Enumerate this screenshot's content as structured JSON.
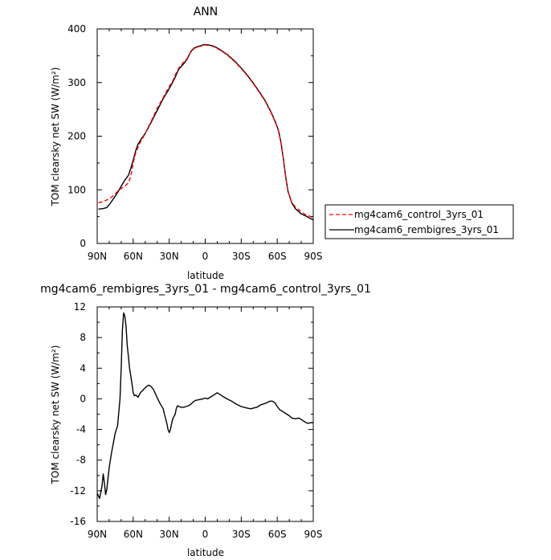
{
  "chart_data": [
    {
      "type": "line",
      "title": "ANN",
      "xlabel": "latitude",
      "ylabel": "TOM clearsky net SW (W/m²)",
      "xlim": [
        90,
        -90
      ],
      "ylim": [
        0,
        400
      ],
      "x_ticks": [
        90,
        60,
        30,
        0,
        -30,
        -60,
        -90
      ],
      "x_tick_labels": [
        "90N",
        "60N",
        "30N",
        "0",
        "30S",
        "60S",
        "90S"
      ],
      "y_ticks": [
        0,
        100,
        200,
        300,
        400
      ],
      "y_tick_labels": [
        "0",
        "100",
        "200",
        "300",
        "400"
      ],
      "legend_position": "right",
      "series": [
        {
          "name": "mg4cam6_control_3yrs_01",
          "color": "#ff0000",
          "dash": "dashed",
          "points": [
            [
              89,
              76
            ],
            [
              85,
              78
            ],
            [
              80,
              83
            ],
            [
              75,
              92
            ],
            [
              72,
              100
            ],
            [
              68,
              105
            ],
            [
              64,
              113
            ],
            [
              62,
              125
            ],
            [
              60,
              150
            ],
            [
              58,
              168
            ],
            [
              55,
              185
            ],
            [
              50,
              205
            ],
            [
              45,
              228
            ],
            [
              40,
              252
            ],
            [
              35,
              272
            ],
            [
              31,
              289
            ],
            [
              27,
              303
            ],
            [
              25,
              314
            ],
            [
              22,
              327
            ],
            [
              18,
              338
            ],
            [
              15,
              345
            ],
            [
              12,
              357
            ],
            [
              9,
              364
            ],
            [
              5,
              367
            ],
            [
              2,
              369
            ],
            [
              0,
              370
            ],
            [
              -3,
              369
            ],
            [
              -7,
              367
            ],
            [
              -12,
              361
            ],
            [
              -18,
              352
            ],
            [
              -25,
              338
            ],
            [
              -30,
              326
            ],
            [
              -35,
              313
            ],
            [
              -40,
              298
            ],
            [
              -45,
              282
            ],
            [
              -50,
              265
            ],
            [
              -55,
              243
            ],
            [
              -58,
              228
            ],
            [
              -61,
              210
            ],
            [
              -63,
              190
            ],
            [
              -65,
              160
            ],
            [
              -67,
              125
            ],
            [
              -69,
              97
            ],
            [
              -72,
              77
            ],
            [
              -75,
              68
            ],
            [
              -80,
              59
            ],
            [
              -84,
              53
            ],
            [
              -88,
              50
            ],
            [
              -90,
              48
            ]
          ]
        },
        {
          "name": "mg4cam6_rembigres_3yrs_01",
          "color": "#000000",
          "dash": "solid",
          "points": [
            [
              89,
              64
            ],
            [
              85,
              65
            ],
            [
              82,
              67
            ],
            [
              79,
              75
            ],
            [
              76,
              85
            ],
            [
              73,
              95
            ],
            [
              70,
              107
            ],
            [
              67,
              118
            ],
            [
              64,
              127
            ],
            [
              62,
              140
            ],
            [
              60,
              155
            ],
            [
              58,
              172
            ],
            [
              56,
              185
            ],
            [
              53,
              196
            ],
            [
              50,
              205
            ],
            [
              45,
              226
            ],
            [
              40,
              248
            ],
            [
              35,
              270
            ],
            [
              31,
              285
            ],
            [
              28,
              297
            ],
            [
              25,
              310
            ],
            [
              22,
              325
            ],
            [
              18,
              335
            ],
            [
              15,
              344
            ],
            [
              12,
              358
            ],
            [
              9,
              365
            ],
            [
              5,
              368
            ],
            [
              2,
              370
            ],
            [
              0,
              371
            ],
            [
              -3,
              370
            ],
            [
              -7,
              368
            ],
            [
              -12,
              362
            ],
            [
              -18,
              353
            ],
            [
              -25,
              339
            ],
            [
              -30,
              327
            ],
            [
              -35,
              314
            ],
            [
              -40,
              299
            ],
            [
              -45,
              283
            ],
            [
              -50,
              266
            ],
            [
              -55,
              244
            ],
            [
              -58,
              229
            ],
            [
              -61,
              211
            ],
            [
              -63,
              190
            ],
            [
              -65,
              160
            ],
            [
              -67,
              125
            ],
            [
              -69,
              97
            ],
            [
              -72,
              76
            ],
            [
              -75,
              65
            ],
            [
              -80,
              55
            ],
            [
              -84,
              51
            ],
            [
              -88,
              46
            ],
            [
              -90,
              44
            ]
          ]
        }
      ]
    },
    {
      "type": "line",
      "title": "mg4cam6_rembigres_3yrs_01 - mg4cam6_control_3yrs_01",
      "xlabel": "latitude",
      "ylabel": "TOM clearsky net SW (W/m²)",
      "xlim": [
        90,
        -90
      ],
      "ylim": [
        -16,
        12
      ],
      "x_ticks": [
        90,
        60,
        30,
        0,
        -30,
        -60,
        -90
      ],
      "x_tick_labels": [
        "90N",
        "60N",
        "30N",
        "0",
        "30S",
        "60S",
        "90S"
      ],
      "y_ticks": [
        -16,
        -12,
        -8,
        -4,
        0,
        4,
        8,
        12
      ],
      "y_tick_labels": [
        "-16",
        "-12",
        "-8",
        "-4",
        "0",
        "4",
        "8",
        "12"
      ],
      "series": [
        {
          "color": "#000000",
          "dash": "solid",
          "points": [
            [
              90,
              -12.3
            ],
            [
              88,
              -13.0
            ],
            [
              86,
              -11.4
            ],
            [
              85,
              -9.8
            ],
            [
              84,
              -11.0
            ],
            [
              83,
              -12.5
            ],
            [
              82,
              -11.8
            ],
            [
              80,
              -9.0
            ],
            [
              78,
              -7.0
            ],
            [
              75,
              -4.5
            ],
            [
              73,
              -3.5
            ],
            [
              71,
              0
            ],
            [
              70,
              4.0
            ],
            [
              69,
              9.0
            ],
            [
              68,
              11.2
            ],
            [
              67,
              10.8
            ],
            [
              66,
              9.5
            ],
            [
              65,
              7.0
            ],
            [
              64,
              5.5
            ],
            [
              63,
              4.0
            ],
            [
              61,
              2.0
            ],
            [
              60,
              0.8
            ],
            [
              59,
              0.4
            ],
            [
              58,
              0.5
            ],
            [
              57,
              0.4
            ],
            [
              56,
              0.2
            ],
            [
              55,
              0.5
            ],
            [
              54,
              0.8
            ],
            [
              52,
              1.1
            ],
            [
              51,
              1.3
            ],
            [
              49,
              1.6
            ],
            [
              47,
              1.8
            ],
            [
              45,
              1.6
            ],
            [
              43,
              1.2
            ],
            [
              41,
              0.5
            ],
            [
              38,
              -0.5
            ],
            [
              35,
              -1.3
            ],
            [
              34,
              -2.0
            ],
            [
              32,
              -3.2
            ],
            [
              31,
              -4.0
            ],
            [
              30,
              -4.4
            ],
            [
              29,
              -4.0
            ],
            [
              28,
              -3.2
            ],
            [
              27,
              -2.6
            ],
            [
              25,
              -2.0
            ],
            [
              24,
              -1.2
            ],
            [
              23,
              -0.9
            ],
            [
              22,
              -1.0
            ],
            [
              20,
              -1.1
            ],
            [
              18,
              -1.1
            ],
            [
              16,
              -1.0
            ],
            [
              14,
              -0.9
            ],
            [
              12,
              -0.7
            ],
            [
              10,
              -0.4
            ],
            [
              8,
              -0.2
            ],
            [
              5,
              -0.1
            ],
            [
              2,
              0.0
            ],
            [
              0,
              0.1
            ],
            [
              -2,
              0.0
            ],
            [
              -5,
              0.3
            ],
            [
              -7,
              0.5
            ],
            [
              -9,
              0.7
            ],
            [
              -10,
              0.8
            ],
            [
              -11,
              0.7
            ],
            [
              -13,
              0.5
            ],
            [
              -15,
              0.3
            ],
            [
              -18,
              0.0
            ],
            [
              -22,
              -0.3
            ],
            [
              -26,
              -0.7
            ],
            [
              -30,
              -1.0
            ],
            [
              -35,
              -1.2
            ],
            [
              -38,
              -1.3
            ],
            [
              -40,
              -1.2
            ],
            [
              -43,
              -1.1
            ],
            [
              -46,
              -0.8
            ],
            [
              -50,
              -0.6
            ],
            [
              -54,
              -0.3
            ],
            [
              -56,
              -0.3
            ],
            [
              -58,
              -0.5
            ],
            [
              -60,
              -1.0
            ],
            [
              -62,
              -1.4
            ],
            [
              -64,
              -1.6
            ],
            [
              -66,
              -1.8
            ],
            [
              -68,
              -2.0
            ],
            [
              -70,
              -2.2
            ],
            [
              -72,
              -2.5
            ],
            [
              -75,
              -2.6
            ],
            [
              -78,
              -2.5
            ],
            [
              -80,
              -2.7
            ],
            [
              -82,
              -2.9
            ],
            [
              -84,
              -3.1
            ],
            [
              -86,
              -3.2
            ],
            [
              -88,
              -3.1
            ],
            [
              -90,
              -3.1
            ]
          ]
        }
      ]
    }
  ]
}
